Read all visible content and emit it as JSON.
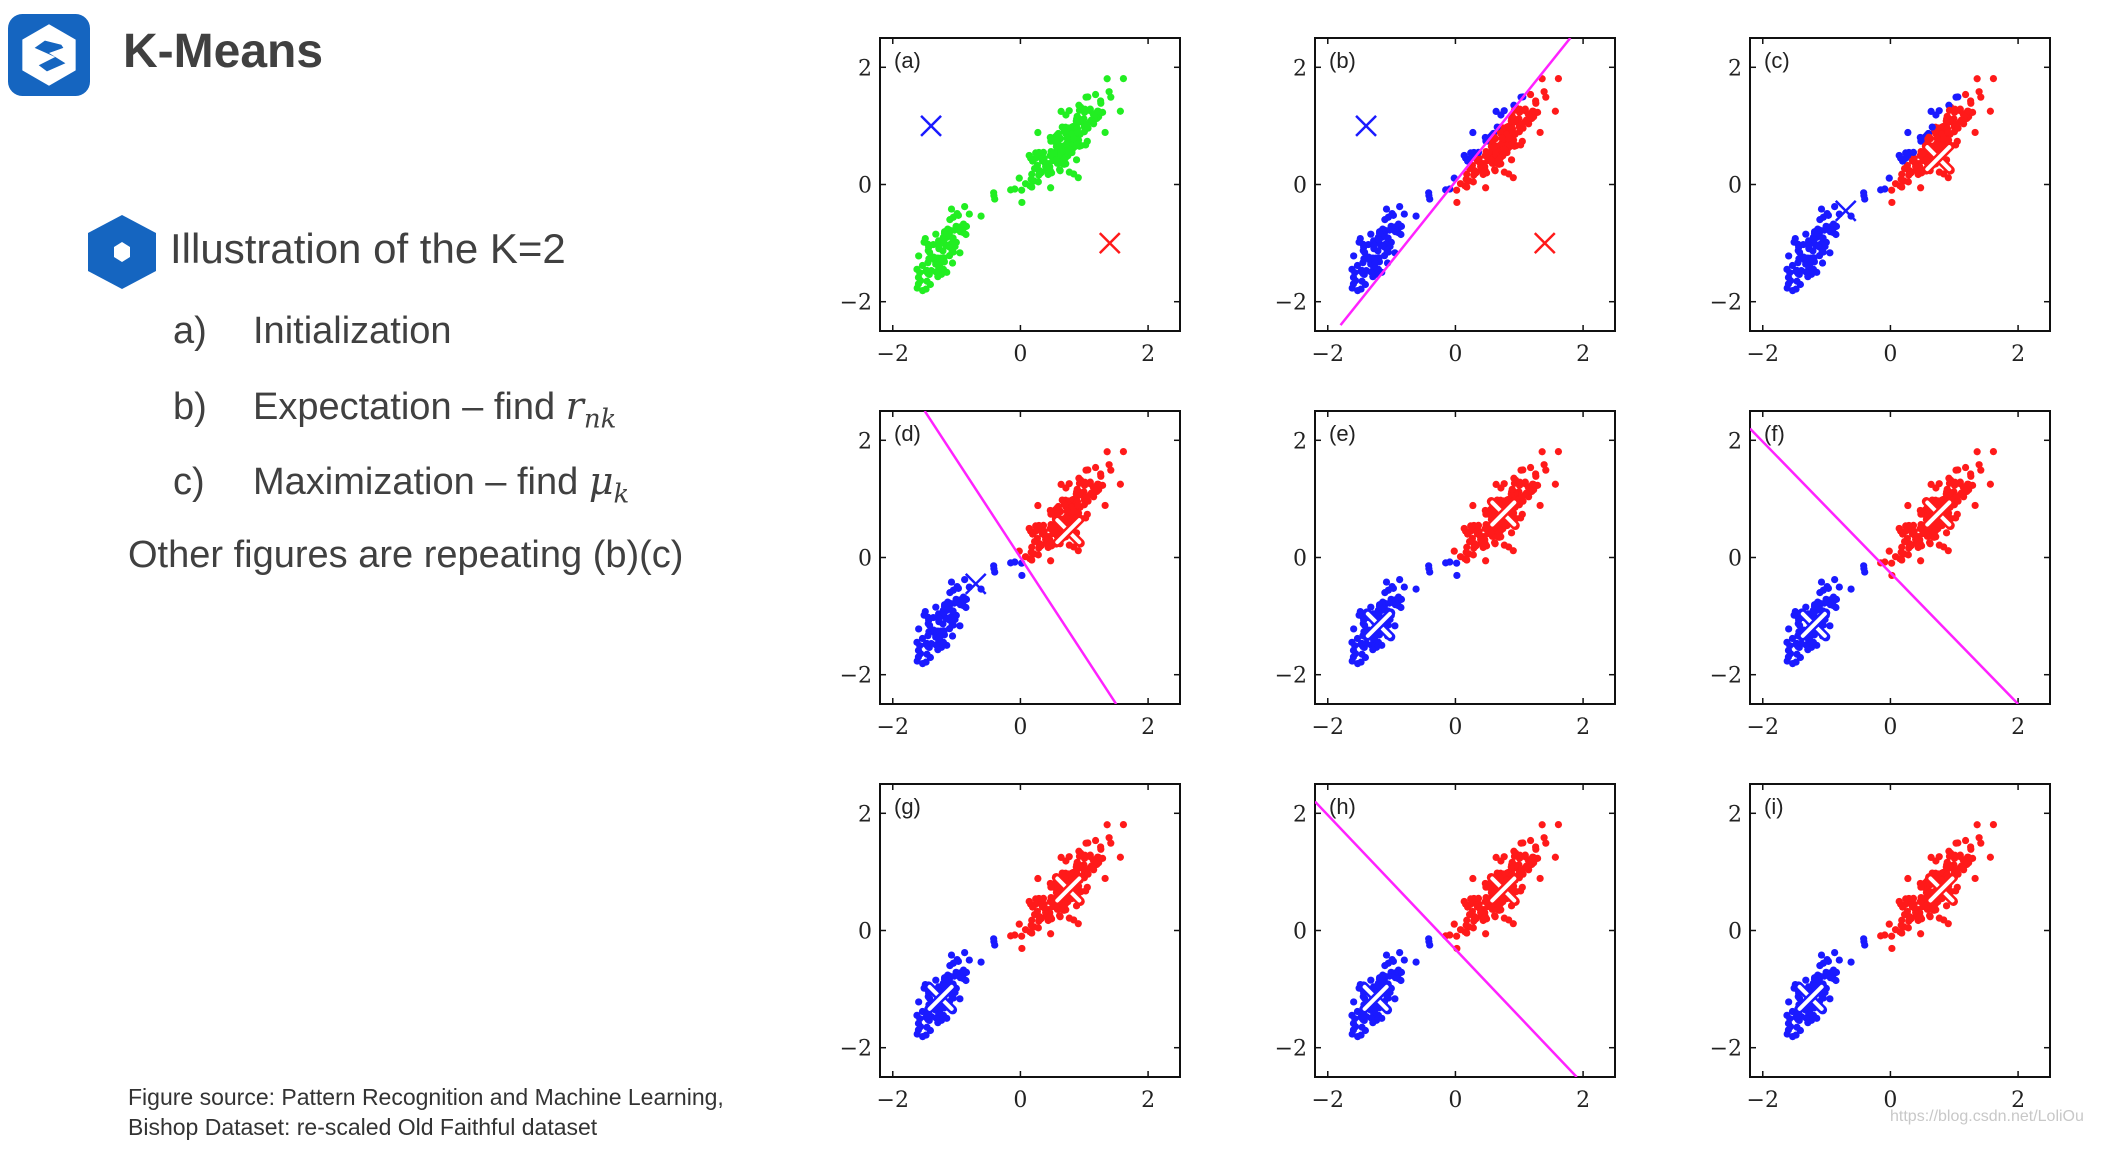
{
  "header": {
    "title": "K-Means",
    "logo_icon": "s-logo-icon"
  },
  "content": {
    "heading": "Illustration of the K=2",
    "items": [
      {
        "letter": "a)",
        "text": "Initialization",
        "math_base": "",
        "math_sub": ""
      },
      {
        "letter": "b)",
        "text": "Expectation – find ",
        "math_base": "r",
        "math_sub": "nk"
      },
      {
        "letter": "c)",
        "text": "Maximization – find ",
        "math_base": "μ",
        "math_sub": "k"
      }
    ],
    "other": "Other figures are repeating (b)(c)",
    "source_line1": "Figure source: Pattern Recognition and Machine Learning,",
    "source_line2": "Bishop Dataset: re-scaled Old Faithful dataset",
    "watermark": "https://blog.csdn.net/LoliOu"
  },
  "chart_data": [
    {
      "type": "scatter",
      "panel": "(a)",
      "xlim": [
        -2.2,
        2.5
      ],
      "ylim": [
        -2.5,
        2.5
      ],
      "xticks": [
        -2,
        0,
        2
      ],
      "yticks": [
        -2,
        0,
        2
      ],
      "colors": {
        "cluster1": "#1a1aff",
        "cluster2": "#ff1a1a",
        "unassigned": "#22ee22"
      },
      "assignment": "none",
      "boundary": null,
      "centroids": [
        {
          "x": -1.4,
          "y": 1.0,
          "color": "#1a1aff",
          "style": "plain"
        },
        {
          "x": 1.4,
          "y": -1.0,
          "color": "#ff1a1a",
          "style": "plain"
        }
      ]
    },
    {
      "type": "scatter",
      "panel": "(b)",
      "xlim": [
        -2.2,
        2.5
      ],
      "ylim": [
        -2.5,
        2.5
      ],
      "xticks": [
        -2,
        0,
        2
      ],
      "yticks": [
        -2,
        0,
        2
      ],
      "colors": {
        "cluster1": "#1a1aff",
        "cluster2": "#ff1a1a",
        "unassigned": "#22ee22"
      },
      "assignment": "linear",
      "boundary": [
        [
          -1.8,
          -2.4
        ],
        [
          1.8,
          2.5
        ]
      ],
      "centroids": [
        {
          "x": -1.4,
          "y": 1.0,
          "color": "#1a1aff",
          "style": "plain"
        },
        {
          "x": 1.4,
          "y": -1.0,
          "color": "#ff1a1a",
          "style": "plain"
        }
      ]
    },
    {
      "type": "scatter",
      "panel": "(c)",
      "xlim": [
        -2.2,
        2.5
      ],
      "ylim": [
        -2.5,
        2.5
      ],
      "xticks": [
        -2,
        0,
        2
      ],
      "yticks": [
        -2,
        0,
        2
      ],
      "colors": {
        "cluster1": "#1a1aff",
        "cluster2": "#ff1a1a",
        "unassigned": "#22ee22"
      },
      "assignment": "linear",
      "boundary": null,
      "centroids": [
        {
          "x": -0.7,
          "y": -0.45,
          "color": "#1a1aff",
          "style": "plain"
        },
        {
          "x": 0.75,
          "y": 0.45,
          "color": "#ff1a1a",
          "style": "white"
        }
      ]
    },
    {
      "type": "scatter",
      "panel": "(d)",
      "xlim": [
        -2.2,
        2.5
      ],
      "ylim": [
        -2.5,
        2.5
      ],
      "xticks": [
        -2,
        0,
        2
      ],
      "yticks": [
        -2,
        0,
        2
      ],
      "colors": {
        "cluster1": "#1a1aff",
        "cluster2": "#ff1a1a",
        "unassigned": "#22ee22"
      },
      "assignment": "linear",
      "boundary": [
        [
          -1.5,
          2.5
        ],
        [
          1.5,
          -2.5
        ]
      ],
      "centroids": [
        {
          "x": -0.7,
          "y": -0.45,
          "color": "#1a1aff",
          "style": "plain"
        },
        {
          "x": 0.75,
          "y": 0.45,
          "color": "#ff1a1a",
          "style": "white"
        }
      ]
    },
    {
      "type": "scatter",
      "panel": "(e)",
      "xlim": [
        -2.2,
        2.5
      ],
      "ylim": [
        -2.5,
        2.5
      ],
      "xticks": [
        -2,
        0,
        2
      ],
      "yticks": [
        -2,
        0,
        2
      ],
      "colors": {
        "cluster1": "#1a1aff",
        "cluster2": "#ff1a1a",
        "unassigned": "#22ee22"
      },
      "assignment": "linear",
      "boundary": null,
      "centroids": [
        {
          "x": -1.2,
          "y": -1.15,
          "color": "#1a1aff",
          "style": "white"
        },
        {
          "x": 0.75,
          "y": 0.75,
          "color": "#ff1a1a",
          "style": "white"
        }
      ]
    },
    {
      "type": "scatter",
      "panel": "(f)",
      "xlim": [
        -2.2,
        2.5
      ],
      "ylim": [
        -2.5,
        2.5
      ],
      "xticks": [
        -2,
        0,
        2
      ],
      "yticks": [
        -2,
        0,
        2
      ],
      "colors": {
        "cluster1": "#1a1aff",
        "cluster2": "#ff1a1a",
        "unassigned": "#22ee22"
      },
      "assignment": "linear",
      "boundary": [
        [
          -2.2,
          2.2
        ],
        [
          2.0,
          -2.5
        ]
      ],
      "centroids": [
        {
          "x": -1.2,
          "y": -1.15,
          "color": "#1a1aff",
          "style": "white"
        },
        {
          "x": 0.75,
          "y": 0.75,
          "color": "#ff1a1a",
          "style": "white"
        }
      ]
    },
    {
      "type": "scatter",
      "panel": "(g)",
      "xlim": [
        -2.2,
        2.5
      ],
      "ylim": [
        -2.5,
        2.5
      ],
      "xticks": [
        -2,
        0,
        2
      ],
      "yticks": [
        -2,
        0,
        2
      ],
      "colors": {
        "cluster1": "#1a1aff",
        "cluster2": "#ff1a1a",
        "unassigned": "#22ee22"
      },
      "assignment": "linear",
      "boundary": null,
      "centroids": [
        {
          "x": -1.25,
          "y": -1.15,
          "color": "#1a1aff",
          "style": "white"
        },
        {
          "x": 0.75,
          "y": 0.7,
          "color": "#ff1a1a",
          "style": "white"
        }
      ]
    },
    {
      "type": "scatter",
      "panel": "(h)",
      "xlim": [
        -2.2,
        2.5
      ],
      "ylim": [
        -2.5,
        2.5
      ],
      "xticks": [
        -2,
        0,
        2
      ],
      "yticks": [
        -2,
        0,
        2
      ],
      "colors": {
        "cluster1": "#1a1aff",
        "cluster2": "#ff1a1a",
        "unassigned": "#22ee22"
      },
      "assignment": "linear",
      "boundary": [
        [
          -2.2,
          2.2
        ],
        [
          1.9,
          -2.5
        ]
      ],
      "centroids": [
        {
          "x": -1.25,
          "y": -1.15,
          "color": "#1a1aff",
          "style": "white"
        },
        {
          "x": 0.75,
          "y": 0.7,
          "color": "#ff1a1a",
          "style": "white"
        }
      ]
    },
    {
      "type": "scatter",
      "panel": "(i)",
      "xlim": [
        -2.2,
        2.5
      ],
      "ylim": [
        -2.5,
        2.5
      ],
      "xticks": [
        -2,
        0,
        2
      ],
      "yticks": [
        -2,
        0,
        2
      ],
      "colors": {
        "cluster1": "#1a1aff",
        "cluster2": "#ff1a1a",
        "unassigned": "#22ee22"
      },
      "assignment": "linear",
      "boundary": null,
      "centroids": [
        {
          "x": -1.25,
          "y": -1.15,
          "color": "#1a1aff",
          "style": "white"
        },
        {
          "x": 0.8,
          "y": 0.7,
          "color": "#ff1a1a",
          "style": "white"
        }
      ]
    }
  ]
}
